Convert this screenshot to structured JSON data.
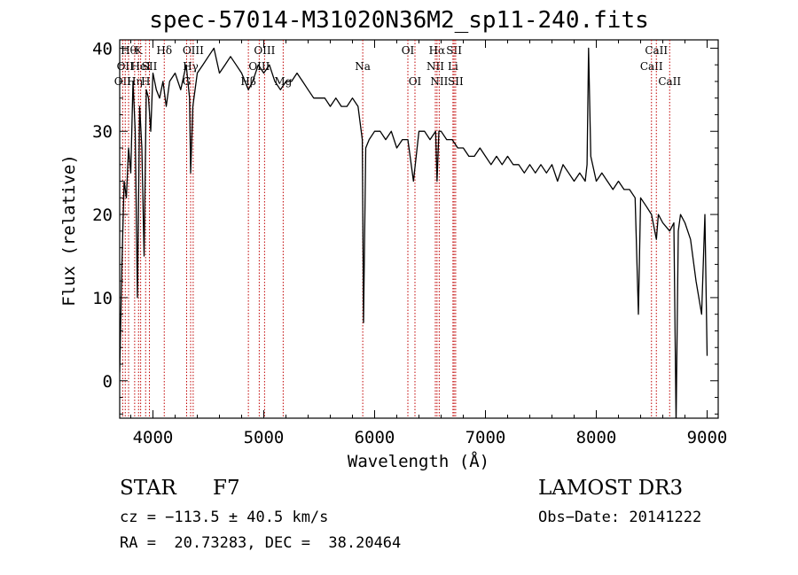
{
  "chart_data": {
    "type": "line",
    "title": "spec-57014-M31020N36M2_sp11-240.fits",
    "xlabel": "Wavelength (Å)",
    "ylabel": "Flux (relative)",
    "xlim": [
      3700,
      9100
    ],
    "ylim": [
      -4.5,
      41
    ],
    "xticks": [
      4000,
      5000,
      6000,
      7000,
      8000,
      9000
    ],
    "yticks": [
      0,
      10,
      20,
      30,
      40
    ],
    "grid": false,
    "series": [
      {
        "name": "",
        "color": "#000000",
        "x": [
          3700,
          3720,
          3740,
          3760,
          3780,
          3800,
          3820,
          3840,
          3860,
          3880,
          3900,
          3920,
          3940,
          3960,
          3980,
          4000,
          4030,
          4060,
          4090,
          4120,
          4150,
          4200,
          4250,
          4300,
          4330,
          4340,
          4360,
          4400,
          4450,
          4500,
          4550,
          4600,
          4650,
          4700,
          4750,
          4800,
          4861,
          4900,
          4950,
          5000,
          5050,
          5100,
          5150,
          5200,
          5250,
          5300,
          5350,
          5400,
          5450,
          5500,
          5550,
          5600,
          5650,
          5700,
          5750,
          5800,
          5850,
          5889,
          5900,
          5920,
          5950,
          6000,
          6050,
          6100,
          6150,
          6200,
          6250,
          6300,
          6350,
          6400,
          6450,
          6500,
          6550,
          6563,
          6580,
          6600,
          6650,
          6700,
          6750,
          6800,
          6850,
          6900,
          6950,
          7000,
          7050,
          7100,
          7150,
          7200,
          7250,
          7300,
          7350,
          7400,
          7450,
          7500,
          7550,
          7600,
          7650,
          7700,
          7750,
          7800,
          7850,
          7900,
          7917,
          7930,
          7950,
          8000,
          8050,
          8100,
          8150,
          8200,
          8250,
          8300,
          8350,
          8380,
          8400,
          8450,
          8498,
          8542,
          8560,
          8600,
          8662,
          8700,
          8720,
          8740,
          8760,
          8800,
          8850,
          8900,
          8950,
          8980,
          9000
        ],
        "values": [
          1,
          14,
          24,
          22,
          28,
          25,
          36,
          30,
          10,
          33,
          28,
          15,
          35,
          34,
          30,
          37,
          35,
          34,
          36,
          33,
          36,
          37,
          35,
          38,
          34,
          25,
          33,
          37,
          38,
          39,
          40,
          37,
          38,
          39,
          38,
          37,
          35,
          36,
          38,
          37,
          38,
          36,
          35,
          36,
          36,
          37,
          36,
          35,
          34,
          34,
          34,
          33,
          34,
          33,
          33,
          34,
          33,
          29,
          7,
          28,
          29,
          30,
          30,
          29,
          30,
          28,
          29,
          29,
          24,
          30,
          30,
          29,
          30,
          24,
          30,
          30,
          29,
          29,
          28,
          28,
          27,
          27,
          28,
          27,
          26,
          27,
          26,
          27,
          26,
          26,
          25,
          26,
          25,
          26,
          25,
          26,
          24,
          26,
          25,
          24,
          25,
          24,
          26,
          40,
          27,
          24,
          25,
          24,
          23,
          24,
          23,
          23,
          22,
          8,
          22,
          21,
          20,
          17,
          20,
          19,
          18,
          19,
          -5,
          18,
          20,
          19,
          17,
          12,
          8,
          20,
          3
        ]
      }
    ],
    "line_markers": [
      {
        "x": 3727,
        "label": "OII",
        "row": 2
      },
      {
        "x": 3750,
        "label": "OII",
        "row": 1
      },
      {
        "x": 3780,
        "label": "Hθ",
        "row": 0
      },
      {
        "x": 3835,
        "label": "Hη",
        "row": 2
      },
      {
        "x": 3870,
        "label": "K",
        "row": 0
      },
      {
        "x": 3889,
        "label": "HeI",
        "row": 1
      },
      {
        "x": 3934,
        "label": "H",
        "row": 2
      },
      {
        "x": 3968,
        "label": "SII",
        "row": 1
      },
      {
        "x": 4102,
        "label": "Hδ",
        "row": 0
      },
      {
        "x": 4304,
        "label": "G",
        "row": 2
      },
      {
        "x": 4340,
        "label": "Hγ",
        "row": 1
      },
      {
        "x": 4363,
        "label": "OIII",
        "row": 0
      },
      {
        "x": 4861,
        "label": "Hβ",
        "row": 2
      },
      {
        "x": 4959,
        "label": "OIII",
        "row": 1
      },
      {
        "x": 5007,
        "label": "OIII",
        "row": 0
      },
      {
        "x": 5175,
        "label": "Mg",
        "row": 2
      },
      {
        "x": 5893,
        "label": "Na",
        "row": 1
      },
      {
        "x": 6300,
        "label": "OI",
        "row": 0
      },
      {
        "x": 6364,
        "label": "OI",
        "row": 2
      },
      {
        "x": 6548,
        "label": "NII",
        "row": 1
      },
      {
        "x": 6563,
        "label": "Hα",
        "row": 0
      },
      {
        "x": 6583,
        "label": "NII",
        "row": 2
      },
      {
        "x": 6707,
        "label": "Li",
        "row": 1
      },
      {
        "x": 6717,
        "label": "SII",
        "row": 0
      },
      {
        "x": 6731,
        "label": "SII",
        "row": 2
      },
      {
        "x": 8498,
        "label": "CaII",
        "row": 1
      },
      {
        "x": 8542,
        "label": "CaII",
        "row": 0
      },
      {
        "x": 8662,
        "label": "CaII",
        "row": 2
      }
    ],
    "marker_color": "#c00000"
  },
  "info": {
    "object_class": "STAR",
    "subclass": "F7",
    "survey": "LAMOST DR3",
    "cz": "cz = −113.5 ± 40.5 km/s",
    "obs_date": "Obs−Date: 20141222",
    "coords": "RA =  20.73283, DEC =  38.20464"
  }
}
